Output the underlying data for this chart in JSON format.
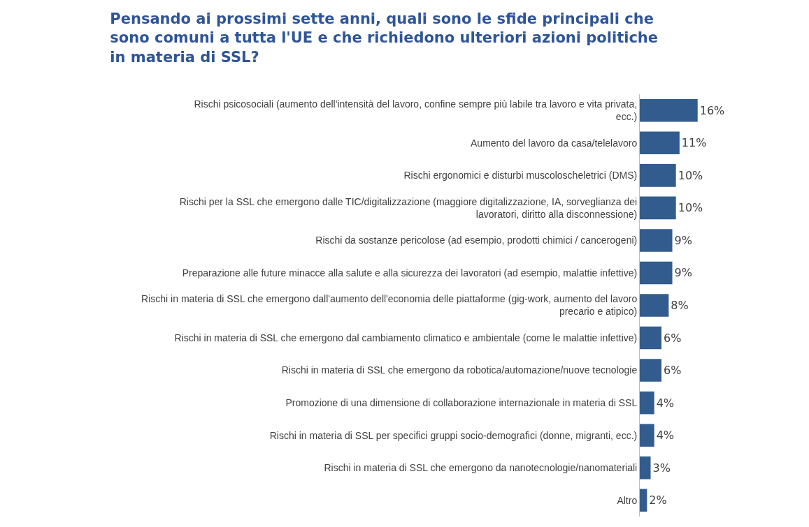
{
  "chart_data": {
    "type": "bar",
    "orientation": "horizontal",
    "title": "Pensando ai prossimi sette anni, quali sono le sfide principali che sono comuni a tutta l'UE e che richiedono ulteriori azioni politiche in materia di SSL?",
    "categories": [
      "Rischi psicosociali (aumento dell'intensità del lavoro, confine sempre più labile tra lavoro e vita privata, ecc.)",
      "Aumento del lavoro da casa/telelavoro",
      "Rischi ergonomici e disturbi muscoloscheletrici (DMS)",
      "Rischi per la SSL che emergono dalle TIC/digitalizzazione (maggiore digitalizzazione, IA, sorveglianza dei lavoratori, diritto alla disconnessione)",
      "Rischi da sostanze pericolose (ad esempio, prodotti chimici / cancerogeni)",
      "Preparazione alle future minacce alla salute e alla sicurezza dei lavoratori (ad esempio, malattie infettive)",
      "Rischi in materia di SSL che emergono dall'aumento dell'economia delle piattaforme (gig-work, aumento del lavoro precario e atipico)",
      "Rischi in materia di SSL che emergono dal cambiamento climatico e ambientale (come le malattie infettive)",
      "Rischi in materia di SSL che emergono da robotica/automazione/nuove tecnologie",
      "Promozione di una dimensione di collaborazione internazionale in materia di SSL",
      "Rischi in materia di SSL per specifici gruppi socio-demografici (donne, migranti, ecc.)",
      "Rischi in materia di SSL che emergono da nanotecnologie/nanomateriali",
      "Altro"
    ],
    "values": [
      16,
      11,
      10,
      10,
      9,
      9,
      8,
      6,
      6,
      4,
      4,
      3,
      2
    ],
    "value_labels": [
      "16%",
      "11%",
      "10%",
      "10%",
      "9%",
      "9%",
      "8%",
      "6%",
      "6%",
      "4%",
      "4%",
      "3%",
      "2%"
    ],
    "color": "#335c8e"
  }
}
